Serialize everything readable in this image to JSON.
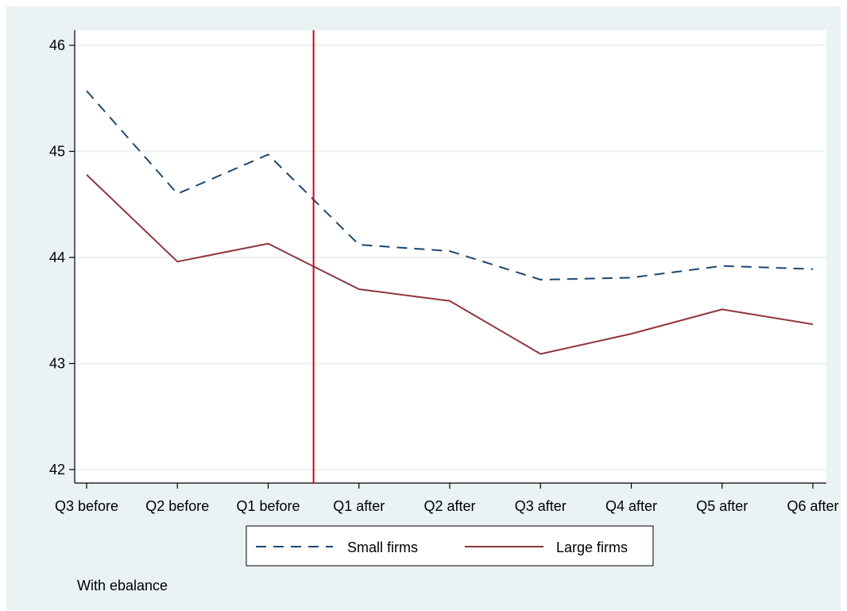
{
  "chart_data": {
    "type": "line",
    "categories": [
      "Q3 before",
      "Q2 before",
      "Q1 before",
      "Q1 after",
      "Q2 after",
      "Q3 after",
      "Q4 after",
      "Q5 after",
      "Q6 after"
    ],
    "series": [
      {
        "name": "Small firms",
        "values": [
          45.57,
          44.6,
          44.97,
          44.12,
          44.06,
          43.79,
          43.81,
          43.92,
          43.89
        ],
        "color": "#1a476f",
        "style": "dashed"
      },
      {
        "name": "Large firms",
        "values": [
          44.78,
          43.96,
          44.13,
          43.7,
          43.59,
          43.09,
          43.28,
          43.51,
          43.37
        ],
        "color": "#90353b",
        "style": "solid"
      }
    ],
    "ylim": [
      41.9,
      46.1
    ],
    "yticks": [
      42,
      43,
      44,
      45,
      46
    ],
    "ytick_labels": [
      "42",
      "43",
      "44",
      "45",
      "46"
    ],
    "vertical_line": {
      "between": [
        "Q1 before",
        "Q1 after"
      ],
      "color": "#d0021b"
    },
    "grid": "horizontal",
    "legend_position": "bottom",
    "note": "With ebalance",
    "title": "",
    "xlabel": "",
    "ylabel": ""
  },
  "colors": {
    "outer_background": "#eaf2f3",
    "plot_background": "#ffffff",
    "grid": "#eaf2f3",
    "axis": "#000000"
  }
}
